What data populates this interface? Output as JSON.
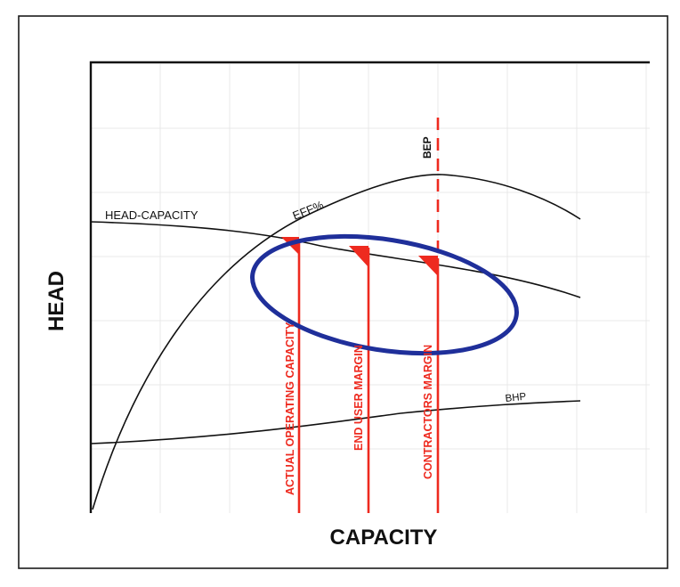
{
  "diagram": {
    "x_axis_label": "CAPACITY",
    "y_axis_label": "HEAD",
    "curves": {
      "head_capacity": "HEAD-CAPACITY",
      "efficiency": "EFF%",
      "bhp": "BHP"
    },
    "bep_label": "BEP",
    "vertical_lines": [
      {
        "label": "ACTUAL OPERATING CAPACITY"
      },
      {
        "label": "END USER MARGIN"
      },
      {
        "label": "CONTRACTORS MARGIN"
      }
    ],
    "colors": {
      "curve": "#111111",
      "margin_lines": "#ee2a1f",
      "highlight_ellipse": "#1f2f9a",
      "grid": "#e9e9e9"
    }
  }
}
